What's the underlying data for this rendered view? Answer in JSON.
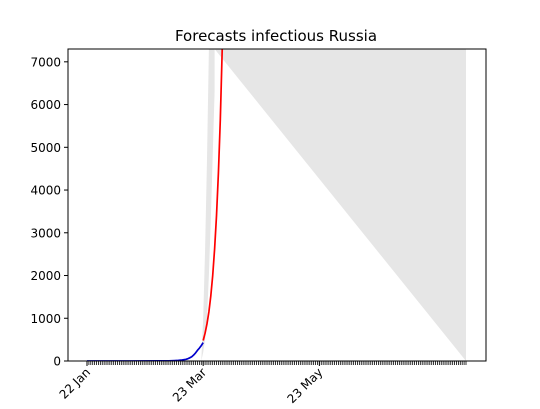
{
  "chart_data": {
    "type": "line",
    "title": "Forecasts infectious Russia",
    "xlabel": "",
    "ylabel": "",
    "x_axis": {
      "type": "date",
      "start": "2020-01-22",
      "end": "2020-08-08",
      "tick_labels": [
        {
          "date": "2020-01-22",
          "label": "22 Jan"
        },
        {
          "date": "2020-03-23",
          "label": "23 Mar"
        },
        {
          "date": "2020-05-23",
          "label": "23 May"
        }
      ],
      "minor_ticks": "daily"
    },
    "y_axis": {
      "ylim": [
        0,
        7300
      ],
      "ticks": [
        0,
        1000,
        2000,
        3000,
        4000,
        5000,
        6000,
        7000
      ]
    },
    "grid": false,
    "legend": "none",
    "series": [
      {
        "role": "observed",
        "color": "#0000cc",
        "points": [
          [
            "2020-01-22",
            0
          ],
          [
            "2020-02-15",
            0
          ],
          [
            "2020-03-01",
            2
          ],
          [
            "2020-03-05",
            5
          ],
          [
            "2020-03-08",
            10
          ],
          [
            "2020-03-10",
            15
          ],
          [
            "2020-03-12",
            25
          ],
          [
            "2020-03-14",
            40
          ],
          [
            "2020-03-15",
            55
          ],
          [
            "2020-03-16",
            75
          ],
          [
            "2020-03-17",
            100
          ],
          [
            "2020-03-18",
            140
          ],
          [
            "2020-03-19",
            190
          ],
          [
            "2020-03-20",
            250
          ],
          [
            "2020-03-21",
            300
          ],
          [
            "2020-03-22",
            360
          ],
          [
            "2020-03-23",
            430
          ]
        ]
      },
      {
        "role": "forecast",
        "color": "#ff0000",
        "points": [
          [
            "2020-03-23",
            480
          ],
          [
            "2020-03-24",
            650
          ],
          [
            "2020-03-25",
            870
          ],
          [
            "2020-03-26",
            1150
          ],
          [
            "2020-03-27",
            1520
          ],
          [
            "2020-03-28",
            2000
          ],
          [
            "2020-03-29",
            2620
          ],
          [
            "2020-03-30",
            3400
          ],
          [
            "2020-03-31",
            4400
          ],
          [
            "2020-04-01",
            5650
          ],
          [
            "2020-04-02",
            7300
          ]
        ]
      }
    ],
    "band": {
      "color": "#e6e6e6",
      "lower": [
        [
          "2020-03-22",
          0
        ],
        [
          "2020-03-23",
          200
        ],
        [
          "2020-03-24",
          500
        ],
        [
          "2020-03-25",
          1000
        ],
        [
          "2020-03-26",
          2000
        ],
        [
          "2020-03-27",
          3300
        ],
        [
          "2020-03-28",
          4800
        ],
        [
          "2020-03-29",
          6300
        ],
        [
          "2020-03-29",
          7300
        ]
      ],
      "upper": [
        [
          "2020-03-22",
          0
        ],
        [
          "2020-03-23",
          1000
        ],
        [
          "2020-03-24",
          2600
        ],
        [
          "2020-03-25",
          4700
        ],
        [
          "2020-03-26",
          7300
        ],
        [
          "2020-08-08",
          7300
        ],
        [
          "2020-08-08",
          0
        ]
      ]
    }
  }
}
